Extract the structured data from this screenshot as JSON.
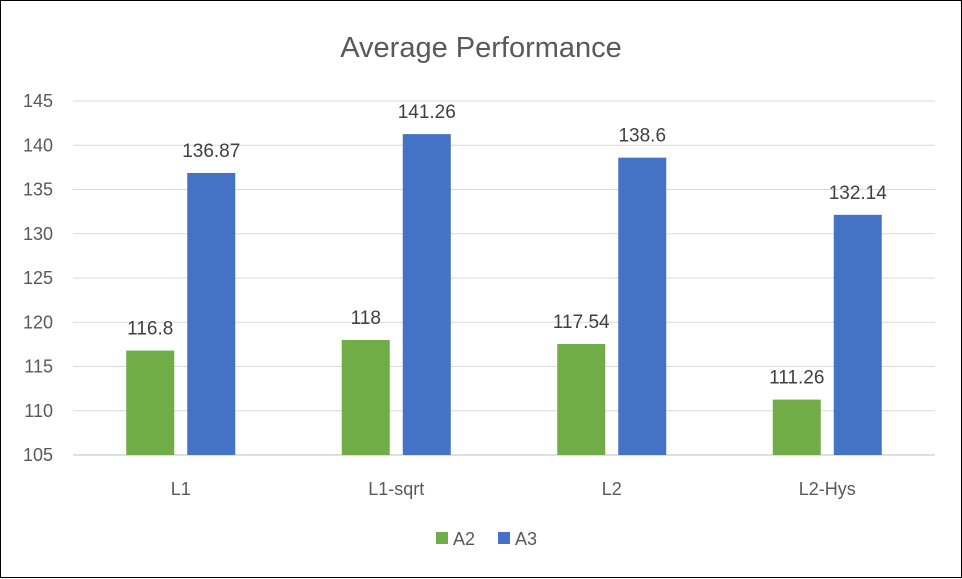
{
  "chart_data": {
    "type": "bar",
    "title": "Average Performance",
    "xlabel": "",
    "ylabel": "",
    "categories": [
      "L1",
      "L1-sqrt",
      "L2",
      "L2-Hys"
    ],
    "series": [
      {
        "name": "A2",
        "color": "#70ad47",
        "values": [
          116.8,
          118,
          117.54,
          111.26
        ]
      },
      {
        "name": "A3",
        "color": "#4472c4",
        "values": [
          136.87,
          141.26,
          138.6,
          132.14
        ]
      }
    ],
    "data_labels": [
      [
        "116.8",
        "118",
        "117.54",
        "111.26"
      ],
      [
        "136.87",
        "141.26",
        "138.6",
        "132.14"
      ]
    ],
    "ylim": [
      105,
      145
    ],
    "yticks": [
      "105",
      "110",
      "115",
      "120",
      "125",
      "130",
      "135",
      "140",
      "145"
    ],
    "grid": true,
    "legend_position": "bottom"
  }
}
